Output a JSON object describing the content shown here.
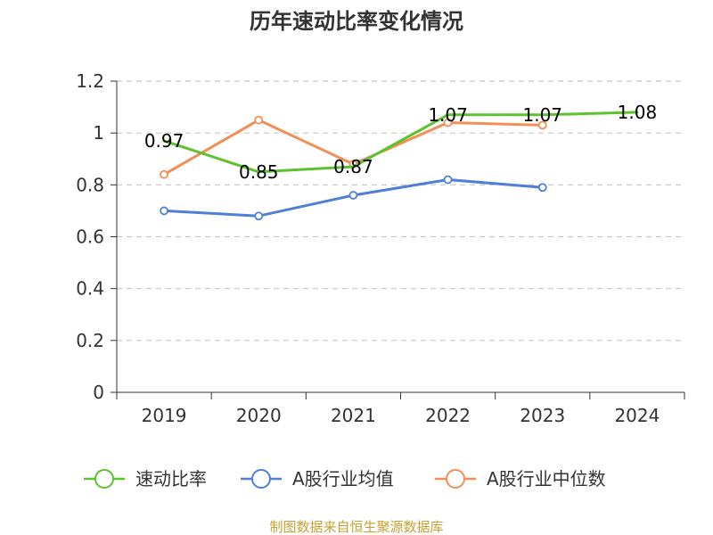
{
  "chart_data": {
    "type": "line",
    "title": "历年速动比率变化情况",
    "categories": [
      "2019",
      "2020",
      "2021",
      "2022",
      "2023",
      "2024"
    ],
    "y_ticks": [
      "0",
      "0.2",
      "0.4",
      "0.6",
      "0.8",
      "1",
      "1.2"
    ],
    "ylim": [
      0,
      1.2
    ],
    "grid": true,
    "legend_position": "bottom",
    "series": [
      {
        "name": "速动比率",
        "color": "#5cc22e",
        "values": [
          0.97,
          0.85,
          0.87,
          1.07,
          1.07,
          1.08
        ],
        "labels": [
          "0.97",
          "0.85",
          "0.87",
          "1.07",
          "1.07",
          "1.08"
        ]
      },
      {
        "name": "A股行业均值",
        "color": "#4f7fd6",
        "values": [
          0.7,
          0.68,
          0.76,
          0.82,
          0.79,
          null
        ],
        "labels": []
      },
      {
        "name": "A股行业中位数",
        "color": "#f28e56",
        "values": [
          0.84,
          1.05,
          0.88,
          1.04,
          1.03,
          null
        ],
        "labels": []
      }
    ]
  },
  "footer": {
    "source": "制图数据来自恒生聚源数据库"
  }
}
